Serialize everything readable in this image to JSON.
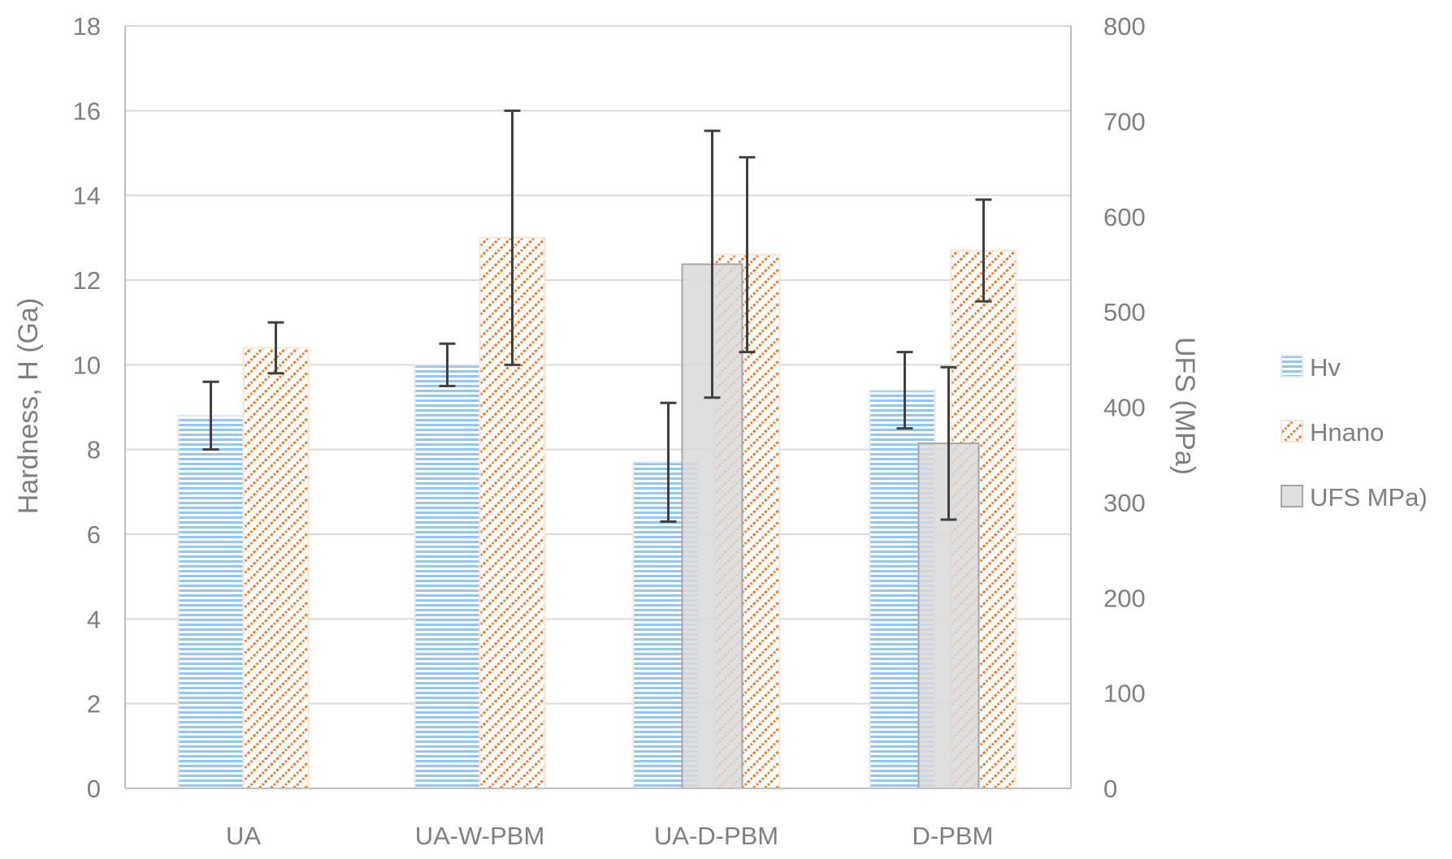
{
  "chart_data": {
    "type": "bar",
    "title": "",
    "categories": [
      "UA",
      "UA-W-PBM",
      "UA-D-PBM",
      "D-PBM"
    ],
    "ylabel": "Hardness, H (Ga)",
    "y2label": "UFS (MPa)",
    "ylim": [
      0,
      18
    ],
    "y2lim": [
      0,
      800
    ],
    "yticks": [
      0,
      2,
      4,
      6,
      8,
      10,
      12,
      14,
      16,
      18
    ],
    "y2ticks": [
      0,
      100,
      200,
      300,
      400,
      500,
      600,
      700,
      800
    ],
    "grid": true,
    "legend_position": "right",
    "series": [
      {
        "name": "Hv",
        "axis": "left",
        "pattern": "horizontal-lines",
        "color": "#9dc3e6",
        "values": [
          8.8,
          10.0,
          7.7,
          9.4
        ],
        "errors": [
          0.8,
          0.5,
          1.4,
          0.9
        ]
      },
      {
        "name": "Hnano",
        "axis": "left",
        "pattern": "diagonal-dots",
        "color": "#ed7d31",
        "values": [
          10.4,
          13.0,
          12.6,
          12.7
        ],
        "errors": [
          0.6,
          3.0,
          2.3,
          1.2
        ]
      },
      {
        "name": "UFS  MPa)",
        "axis": "right",
        "pattern": "solid",
        "color": "#d9d9d9",
        "values": [
          null,
          null,
          550,
          362
        ],
        "errors": [
          null,
          null,
          140,
          80
        ]
      }
    ]
  }
}
